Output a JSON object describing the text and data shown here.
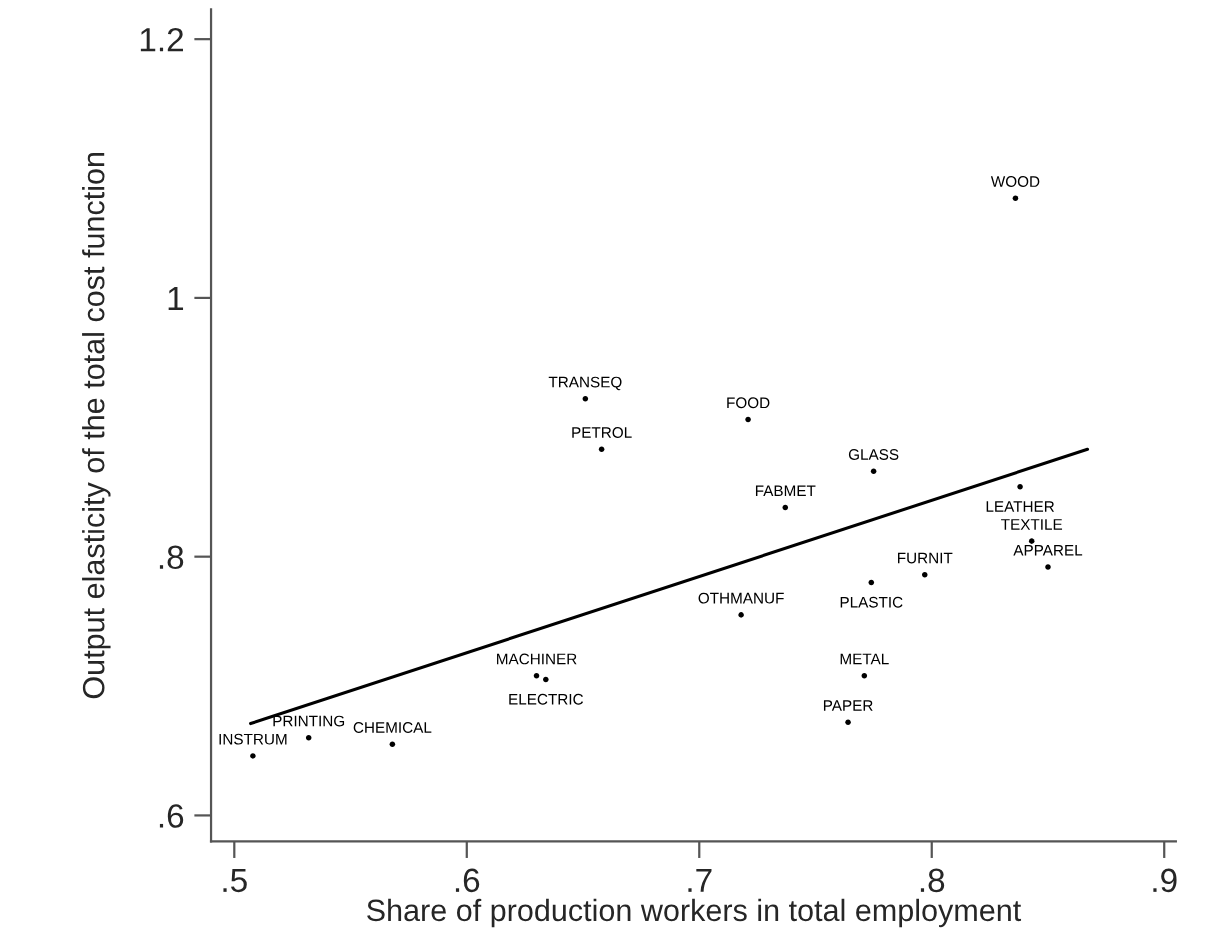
{
  "chart_data": {
    "type": "scatter",
    "xlabel": "Share of production workers in total employment",
    "ylabel": "Output elasticity of the total cost function",
    "xlim": [
      0.49,
      0.905
    ],
    "ylim": [
      0.58,
      1.223
    ],
    "xticks": [
      {
        "value": 0.5,
        "label": ".5"
      },
      {
        "value": 0.6,
        "label": ".6"
      },
      {
        "value": 0.7,
        "label": ".7"
      },
      {
        "value": 0.8,
        "label": ".8"
      },
      {
        "value": 0.9,
        "label": ".9"
      }
    ],
    "yticks": [
      {
        "value": 0.6,
        "label": ".6"
      },
      {
        "value": 0.8,
        "label": ".8"
      },
      1,
      1.2
    ],
    "grid": false,
    "legend": false,
    "series": [
      {
        "type": "scatter",
        "marker": "circle",
        "color": "#000000",
        "x": [
          0.836,
          0.651,
          0.658,
          0.721,
          0.775,
          0.838,
          0.737,
          0.843,
          0.85,
          0.797,
          0.774,
          0.718,
          0.63,
          0.634,
          0.771,
          0.764,
          0.532,
          0.568,
          0.508
        ],
        "values": [
          1.077,
          0.922,
          0.883,
          0.906,
          0.866,
          0.854,
          0.838,
          0.812,
          0.792,
          0.786,
          0.78,
          0.755,
          0.708,
          0.705,
          0.708,
          0.672,
          0.66,
          0.655,
          0.646
        ],
        "value_labels": [
          "WOOD",
          "TRANSEQ",
          "PETROL",
          "FOOD",
          "GLASS",
          "LEATHER",
          "FABMET",
          "TEXTILE",
          "APPAREL",
          "FURNIT",
          "PLASTIC",
          "OTHMANUF",
          "MACHINER",
          "ELECTRIC",
          "METAL",
          "PAPER",
          "PRINTING",
          "CHEMICAL",
          "INSTRUM"
        ]
      },
      {
        "type": "line",
        "marker": "none",
        "line_style": "solid",
        "color": "#000000",
        "x": [
          0.507,
          0.867
        ],
        "values": [
          0.671,
          0.883
        ]
      }
    ]
  }
}
